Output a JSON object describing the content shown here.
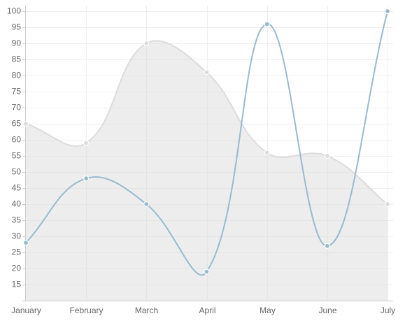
{
  "chart_data": {
    "type": "line",
    "categories": [
      "January",
      "February",
      "March",
      "April",
      "May",
      "June",
      "July"
    ],
    "series": [
      {
        "color": "#dcdcdc",
        "fill": true,
        "fill_color": "rgba(220,220,220,0.5)",
        "values": [
          65,
          59,
          90,
          81,
          56,
          55,
          40
        ]
      },
      {
        "color": "#97bbcd",
        "fill": false,
        "values": [
          28,
          48,
          40,
          19,
          96,
          27,
          100
        ]
      }
    ],
    "ylim": [
      10,
      100
    ],
    "yticks": [
      15,
      20,
      25,
      30,
      35,
      40,
      45,
      50,
      55,
      60,
      65,
      70,
      75,
      80,
      85,
      90,
      95,
      100
    ],
    "grid": true
  }
}
